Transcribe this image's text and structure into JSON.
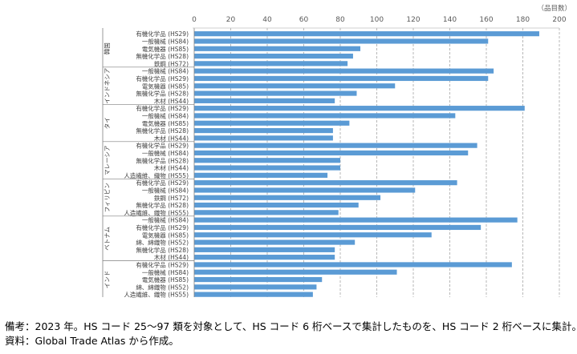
{
  "chart_data": {
    "type": "bar",
    "orientation": "horizontal",
    "unit_label": "（品目数）",
    "xlim": [
      0,
      200
    ],
    "xticks": [
      0,
      20,
      40,
      60,
      80,
      100,
      120,
      140,
      160,
      180,
      200
    ],
    "grid": true,
    "bar_color": "#5b9bd5",
    "groups": [
      {
        "country": "韓国",
        "items": [
          {
            "label": "有機化学品 (HS29)",
            "value": 189
          },
          {
            "label": "一般機械 (HS84)",
            "value": 161
          },
          {
            "label": "電気機器 (HS85)",
            "value": 91
          },
          {
            "label": "無機化学品 (HS28)",
            "value": 87
          },
          {
            "label": "鉄鋼 (HS72)",
            "value": 84
          }
        ]
      },
      {
        "country": "インドネシア",
        "items": [
          {
            "label": "一般機械 (HS84)",
            "value": 164
          },
          {
            "label": "有機化学品 (HS29)",
            "value": 161
          },
          {
            "label": "電気機器 (HS85)",
            "value": 110
          },
          {
            "label": "無機化学品 (HS28)",
            "value": 89
          },
          {
            "label": "木材 (HS44)",
            "value": 77
          }
        ]
      },
      {
        "country": "タイ",
        "items": [
          {
            "label": "有機化学品 (HS29)",
            "value": 181
          },
          {
            "label": "一般機械 (HS84)",
            "value": 143
          },
          {
            "label": "電気機器 (HS85)",
            "value": 85
          },
          {
            "label": "無機化学品 (HS28)",
            "value": 76
          },
          {
            "label": "木材 (HS44)",
            "value": 76
          }
        ]
      },
      {
        "country": "マレーシア",
        "items": [
          {
            "label": "有機化学品 (HS29)",
            "value": 155
          },
          {
            "label": "一般機械 (HS84)",
            "value": 150
          },
          {
            "label": "無機化学品 (HS28)",
            "value": 80
          },
          {
            "label": "木材 (HS44)",
            "value": 80
          },
          {
            "label": "人造繊維、織物 (HS55)",
            "value": 73
          }
        ]
      },
      {
        "country": "フィリピン",
        "items": [
          {
            "label": "有機化学品 (HS29)",
            "value": 144
          },
          {
            "label": "一般機械 (HS84)",
            "value": 121
          },
          {
            "label": "鉄鋼 (HS72)",
            "value": 102
          },
          {
            "label": "無機化学品 (HS28)",
            "value": 90
          },
          {
            "label": "人造繊維、織物 (HS55)",
            "value": 79
          }
        ]
      },
      {
        "country": "ベトナム",
        "items": [
          {
            "label": "一般機械 (HS84)",
            "value": 177
          },
          {
            "label": "有機化学品 (HS29)",
            "value": 157
          },
          {
            "label": "電気機器 (HS85)",
            "value": 130
          },
          {
            "label": "綿、綿織物 (HS52)",
            "value": 88
          },
          {
            "label": "無機化学品 (HS28)",
            "value": 77
          },
          {
            "label": "木材 (HS44)",
            "value": 77
          }
        ]
      },
      {
        "country": "インド",
        "items": [
          {
            "label": "有機化学品 (HS29)",
            "value": 174
          },
          {
            "label": "一般機械 (HS84)",
            "value": 111
          },
          {
            "label": "電気機器 (HS85)",
            "value": 70
          },
          {
            "label": "綿、綿織物 (HS52)",
            "value": 67
          },
          {
            "label": "人造繊維、織物 (HS55)",
            "value": 65
          }
        ]
      }
    ]
  },
  "notes": {
    "line1": "備考：2023 年。HS コード 25～97 類を対象として、HS コード 6 桁ベースで集計したものを、HS コード 2 桁ベースに集計。",
    "line2": "資料：Global Trade Atlas から作成。"
  }
}
